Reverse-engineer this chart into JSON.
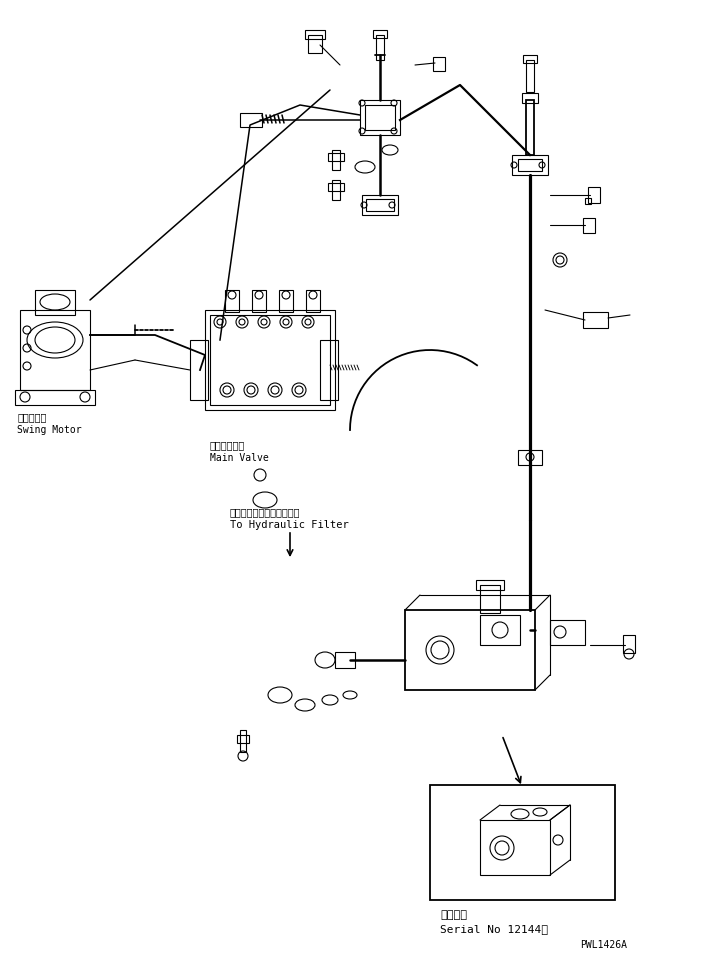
{
  "bg_color": "#ffffff",
  "line_color": "#000000",
  "title_text": "",
  "label_swing_motor_jp": "押回モータ",
  "label_swing_motor_en": "Swing Motor",
  "label_main_valve_jp": "メインバルブ",
  "label_main_valve_en": "Main Valve",
  "label_hydraulic_jp": "ハイドロリックフィルタヘ",
  "label_hydraulic_en": "To Hydraulic Filter",
  "label_serial_jp": "適用号機",
  "label_serial_en": "Serial No 12144～",
  "watermark": "PWL1426A",
  "fig_width": 7.12,
  "fig_height": 9.56
}
